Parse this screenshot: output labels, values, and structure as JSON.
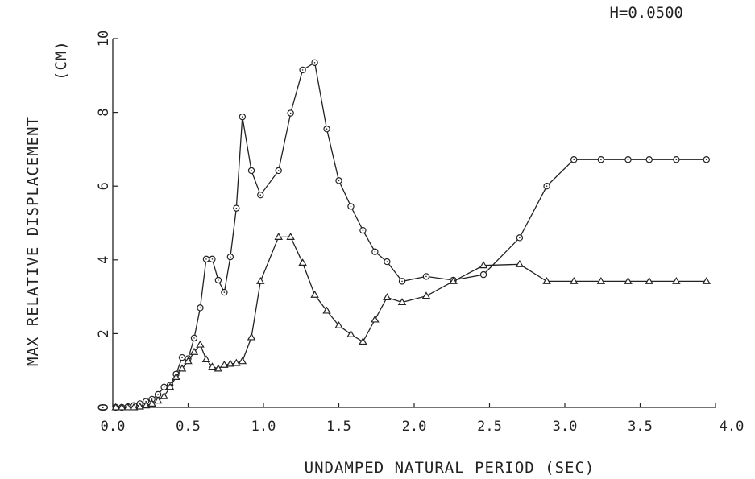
{
  "chart_data": {
    "type": "line",
    "title": "",
    "annotation": "H=0.0500",
    "xlabel": "UNDAMPED NATURAL PERIOD (SEC)",
    "ylabel": "MAX RELATIVE DISPLACEMENT",
    "ylabel_unit": "(CM)",
    "xlim": [
      0,
      4.0
    ],
    "ylim": [
      0,
      10
    ],
    "x_ticks": [
      0.0,
      0.5,
      1.0,
      1.5,
      2.0,
      2.5,
      3.0,
      3.5,
      4.0
    ],
    "x_tick_labels": [
      "0.0",
      "0.5",
      "1.0",
      "1.5",
      "2.0",
      "2.5",
      "3.0",
      "3.5",
      "4.0"
    ],
    "y_ticks": [
      0,
      2,
      4,
      6,
      8,
      10
    ],
    "y_tick_labels": [
      "0",
      "2",
      "4",
      "6",
      "8",
      "10"
    ],
    "grid": false,
    "legend": "none",
    "series": [
      {
        "marker": "circle",
        "color": "#222222",
        "x": [
          0.02,
          0.06,
          0.1,
          0.14,
          0.18,
          0.22,
          0.26,
          0.3,
          0.34,
          0.38,
          0.42,
          0.46,
          0.5,
          0.54,
          0.58,
          0.62,
          0.66,
          0.7,
          0.74,
          0.78,
          0.82,
          0.86,
          0.92,
          0.98,
          1.1,
          1.18,
          1.26,
          1.34,
          1.42,
          1.5,
          1.58,
          1.66,
          1.74,
          1.82,
          1.92,
          2.08,
          2.26,
          2.46,
          2.7,
          2.88,
          3.06,
          3.24,
          3.42,
          3.56,
          3.74,
          3.94
        ],
        "y": [
          0.0,
          0.0,
          0.02,
          0.05,
          0.1,
          0.16,
          0.22,
          0.35,
          0.55,
          0.6,
          0.9,
          1.35,
          1.32,
          1.88,
          2.7,
          4.02,
          4.02,
          3.45,
          3.12,
          4.08,
          5.4,
          7.88,
          6.42,
          5.76,
          6.42,
          7.98,
          9.15,
          9.35,
          7.55,
          6.15,
          5.45,
          4.8,
          4.22,
          3.95,
          3.42,
          3.55,
          3.45,
          3.6,
          4.6,
          6.0,
          6.72,
          6.72,
          6.72,
          6.72,
          6.72,
          6.72
        ]
      },
      {
        "marker": "triangle",
        "color": "#222222",
        "x": [
          0.02,
          0.06,
          0.1,
          0.14,
          0.18,
          0.22,
          0.26,
          0.3,
          0.34,
          0.38,
          0.42,
          0.46,
          0.5,
          0.54,
          0.58,
          0.62,
          0.66,
          0.7,
          0.74,
          0.78,
          0.82,
          0.86,
          0.92,
          0.98,
          1.1,
          1.18,
          1.26,
          1.34,
          1.42,
          1.5,
          1.58,
          1.66,
          1.74,
          1.82,
          1.92,
          2.08,
          2.26,
          2.46,
          2.7,
          2.88,
          3.06,
          3.24,
          3.42,
          3.56,
          3.74,
          3.94
        ],
        "y": [
          0.0,
          0.0,
          0.0,
          0.0,
          0.02,
          0.05,
          0.1,
          0.18,
          0.3,
          0.55,
          0.82,
          1.05,
          1.25,
          1.5,
          1.7,
          1.3,
          1.1,
          1.05,
          1.15,
          1.18,
          1.2,
          1.25,
          1.9,
          3.42,
          4.62,
          4.62,
          3.92,
          3.05,
          2.62,
          2.22,
          1.98,
          1.78,
          2.38,
          2.98,
          2.85,
          3.02,
          3.42,
          3.85,
          3.88,
          3.42,
          3.42,
          3.42,
          3.42,
          3.42,
          3.42,
          3.42
        ]
      }
    ]
  }
}
